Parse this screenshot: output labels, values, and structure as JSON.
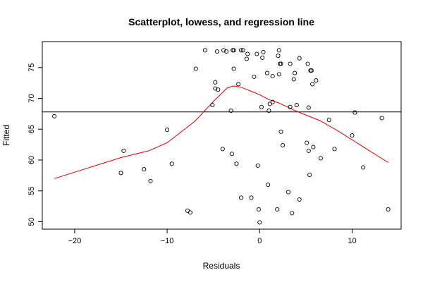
{
  "chart_data": {
    "type": "scatter",
    "title": "Scatterplot, lowess, and regression line",
    "xlabel": "Residuals",
    "ylabel": "Fitted",
    "xlim": [
      -23.5,
      15.3
    ],
    "ylim": [
      48.8,
      79.2
    ],
    "xticks": [
      -20,
      -10,
      0,
      10
    ],
    "yticks": [
      50,
      55,
      60,
      65,
      70,
      75
    ],
    "xtick_labels": [
      "−20",
      "−10",
      "0",
      "10"
    ],
    "ytick_labels": [
      "50",
      "55",
      "60",
      "65",
      "70",
      "75"
    ],
    "grid": false,
    "regression_line_y": 67.8,
    "lowess_color": "#e00000",
    "points": [
      [
        -22.2,
        67.1
      ],
      [
        -15.0,
        57.9
      ],
      [
        -14.7,
        61.5
      ],
      [
        -12.5,
        58.5
      ],
      [
        -11.8,
        56.6
      ],
      [
        -10.0,
        64.9
      ],
      [
        -9.5,
        59.4
      ],
      [
        -7.8,
        51.8
      ],
      [
        -7.5,
        51.5
      ],
      [
        -6.9,
        74.8
      ],
      [
        -5.9,
        77.8
      ],
      [
        -5.1,
        68.9
      ],
      [
        -4.8,
        72.6
      ],
      [
        -4.8,
        71.6
      ],
      [
        -4.6,
        77.6
      ],
      [
        -4.5,
        71.4
      ],
      [
        -4.0,
        61.8
      ],
      [
        -3.9,
        77.8
      ],
      [
        -3.6,
        77.6
      ],
      [
        -3.1,
        68.0
      ],
      [
        -3.0,
        61.0
      ],
      [
        -2.9,
        77.8
      ],
      [
        -2.8,
        74.8
      ],
      [
        -2.8,
        77.8
      ],
      [
        -2.5,
        59.4
      ],
      [
        -2.3,
        72.3
      ],
      [
        -2.0,
        53.9
      ],
      [
        -2.0,
        77.8
      ],
      [
        -1.8,
        77.8
      ],
      [
        -1.4,
        76.4
      ],
      [
        -1.3,
        77.2
      ],
      [
        -0.9,
        53.9
      ],
      [
        -0.6,
        73.5
      ],
      [
        -0.3,
        77.2
      ],
      [
        -0.2,
        59.1
      ],
      [
        -0.1,
        52.0
      ],
      [
        0.0,
        49.9
      ],
      [
        0.2,
        68.6
      ],
      [
        0.3,
        76.6
      ],
      [
        0.4,
        77.5
      ],
      [
        0.8,
        74.1
      ],
      [
        0.9,
        56.0
      ],
      [
        1.0,
        68.0
      ],
      [
        1.1,
        69.1
      ],
      [
        1.4,
        73.6
      ],
      [
        1.4,
        69.4
      ],
      [
        1.9,
        52.0
      ],
      [
        2.0,
        76.9
      ],
      [
        2.1,
        73.9
      ],
      [
        2.1,
        77.8
      ],
      [
        2.2,
        75.6
      ],
      [
        2.3,
        75.6
      ],
      [
        2.3,
        64.6
      ],
      [
        2.5,
        62.4
      ],
      [
        3.1,
        54.8
      ],
      [
        3.3,
        68.6
      ],
      [
        3.3,
        75.6
      ],
      [
        3.5,
        51.4
      ],
      [
        3.7,
        73.1
      ],
      [
        3.8,
        74.1
      ],
      [
        4.0,
        68.9
      ],
      [
        4.3,
        53.6
      ],
      [
        4.3,
        76.5
      ],
      [
        5.1,
        62.8
      ],
      [
        5.2,
        75.6
      ],
      [
        5.3,
        68.5
      ],
      [
        5.3,
        61.5
      ],
      [
        5.4,
        57.6
      ],
      [
        5.5,
        74.5
      ],
      [
        5.6,
        74.5
      ],
      [
        5.7,
        72.3
      ],
      [
        5.8,
        62.1
      ],
      [
        6.1,
        72.9
      ],
      [
        6.6,
        60.3
      ],
      [
        7.5,
        66.5
      ],
      [
        8.1,
        61.8
      ],
      [
        10.0,
        64.0
      ],
      [
        10.3,
        67.7
      ],
      [
        11.2,
        58.8
      ],
      [
        13.2,
        66.8
      ],
      [
        13.9,
        52.0
      ]
    ],
    "lowess": [
      [
        -22.2,
        57.0
      ],
      [
        -15.0,
        60.4
      ],
      [
        -12.0,
        61.5
      ],
      [
        -10.0,
        62.8
      ],
      [
        -7.0,
        66.3
      ],
      [
        -5.0,
        69.5
      ],
      [
        -3.5,
        71.7
      ],
      [
        -2.8,
        72.0
      ],
      [
        -2.0,
        71.8
      ],
      [
        -1.0,
        71.2
      ],
      [
        0.0,
        70.6
      ],
      [
        1.0,
        69.8
      ],
      [
        2.0,
        69.3
      ],
      [
        4.0,
        67.9
      ],
      [
        6.5,
        66.4
      ],
      [
        8.5,
        64.7
      ],
      [
        10.5,
        62.8
      ],
      [
        13.9,
        59.6
      ]
    ]
  }
}
